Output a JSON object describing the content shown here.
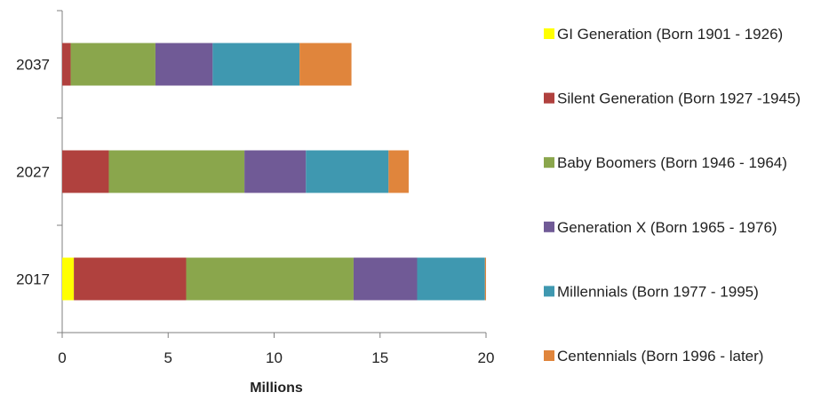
{
  "chart_data": {
    "type": "bar",
    "orientation": "horizontal",
    "stacked": true,
    "categories": [
      "2037",
      "2027",
      "2017"
    ],
    "xlabel": "Millions",
    "xlim": [
      0,
      20
    ],
    "xticks": [
      "0",
      "5",
      "10",
      "15",
      "20"
    ],
    "grid": false,
    "legend_position": "right",
    "series": [
      {
        "name": "GI Generation (Born 1901 - 1926)",
        "color": "#ffff00",
        "values": [
          0,
          0,
          0.55
        ]
      },
      {
        "name": "Silent Generation (Born 1927 -1945)",
        "color": "#b0413e",
        "values": [
          0.4,
          2.2,
          5.3
        ]
      },
      {
        "name": "Baby Boomers (Born 1946 - 1964)",
        "color": "#8aa64c",
        "values": [
          4.0,
          6.4,
          7.9
        ]
      },
      {
        "name": "Generation X (Born 1965 - 1976)",
        "color": "#705a96",
        "values": [
          2.7,
          2.9,
          3.0
        ]
      },
      {
        "name": "Millennials (Born 1977 - 1995)",
        "color": "#3f98b0",
        "values": [
          4.1,
          3.9,
          3.2
        ]
      },
      {
        "name": "Centennials (Born 1996 - later)",
        "color": "#e0853c",
        "values": [
          2.45,
          0.95,
          0.05
        ]
      }
    ]
  }
}
